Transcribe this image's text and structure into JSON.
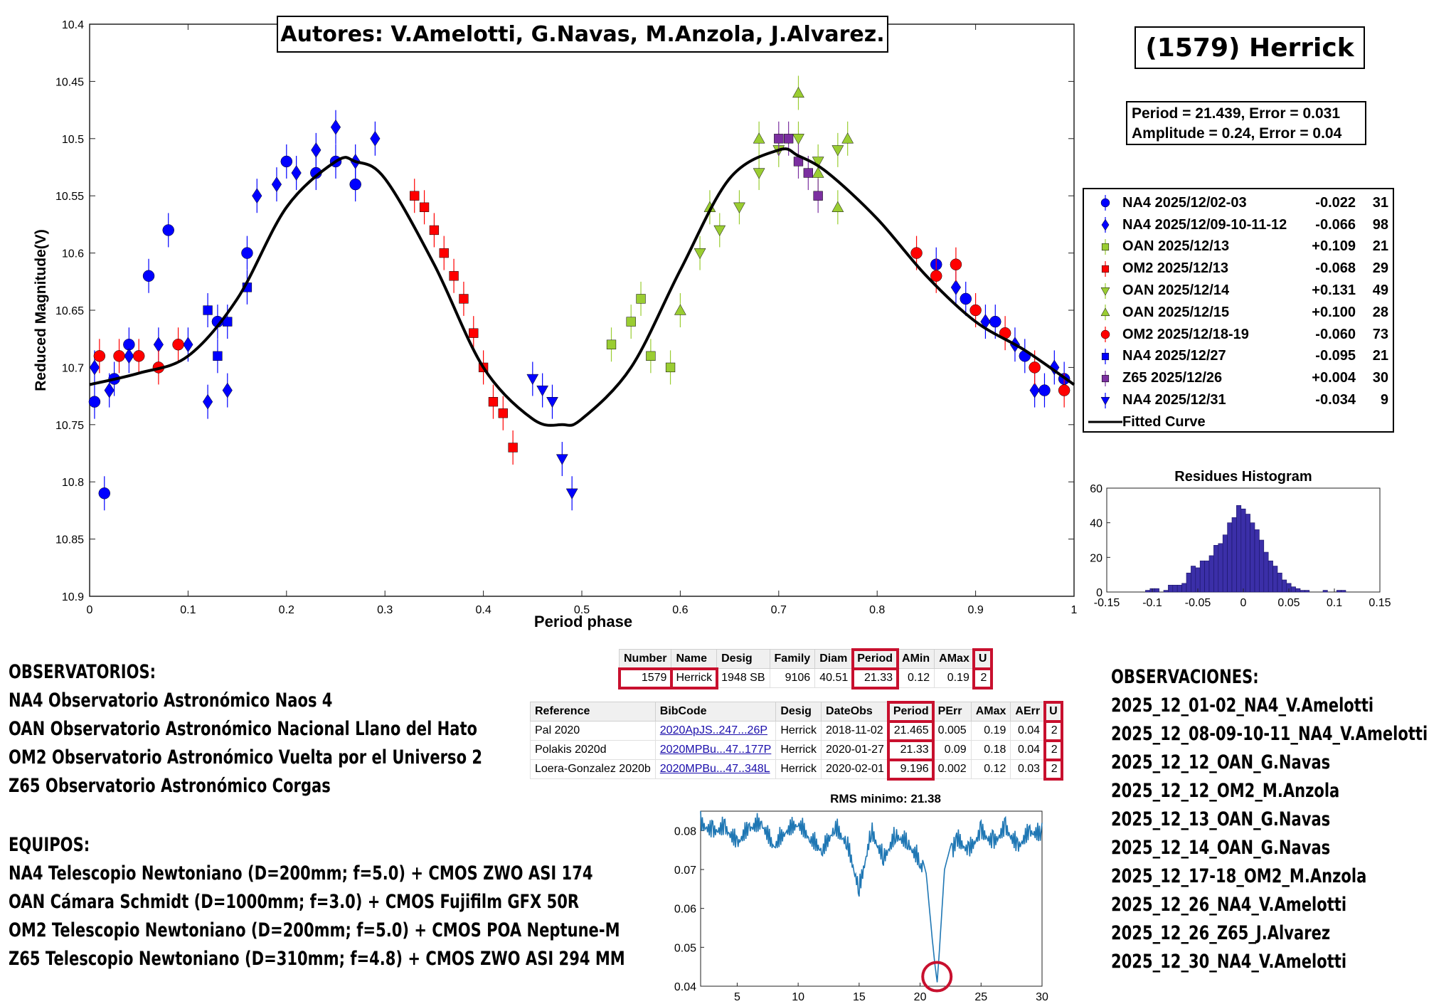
{
  "main_chart": {
    "title": "(1579) Herrick",
    "authors": "Autores: V.Amelotti, G.Navas, M.Anzola, J.Alvarez.",
    "period_line": "Period =  21.439, Error = 0.031",
    "amplitude_line": "Amplitude = 0.24, Error = 0.04",
    "xlabel": "Period phase",
    "ylabel": "Reduced Magnitude(V)",
    "x_ticks": [
      "0",
      "0.1",
      "0.2",
      "0.3",
      "0.4",
      "0.5",
      "0.6",
      "0.7",
      "0.8",
      "0.9",
      "1"
    ],
    "y_ticks": [
      "10.4",
      "10.45",
      "10.5",
      "10.55",
      "10.6",
      "10.65",
      "10.7",
      "10.75",
      "10.8",
      "10.85",
      "10.9"
    ],
    "legend": [
      {
        "name": "NA4 2025/12/02-03",
        "offset": "-0.022",
        "n": "31",
        "color": "#0000ff",
        "marker": "circle"
      },
      {
        "name": "NA4 2025/12/09-10-11-12",
        "offset": "-0.066",
        "n": "98",
        "color": "#0000ff",
        "marker": "diamond"
      },
      {
        "name": "OAN 2025/12/13",
        "offset": "+0.109",
        "n": "21",
        "color": "#9acd32",
        "marker": "square"
      },
      {
        "name": "OM2 2025/12/13",
        "offset": "-0.068",
        "n": "29",
        "color": "#ff0000",
        "marker": "square"
      },
      {
        "name": "OAN 2025/12/14",
        "offset": "+0.131",
        "n": "49",
        "color": "#9acd32",
        "marker": "triangle-down"
      },
      {
        "name": "OAN 2025/12/15",
        "offset": "+0.100",
        "n": "28",
        "color": "#9acd32",
        "marker": "triangle-up"
      },
      {
        "name": "OM2 2025/12/18-19",
        "offset": "-0.060",
        "n": "73",
        "color": "#ff0000",
        "marker": "circle"
      },
      {
        "name": "NA4 2025/12/27",
        "offset": "-0.095",
        "n": "21",
        "color": "#0000ff",
        "marker": "square"
      },
      {
        "name": "Z65 2025/12/26",
        "offset": "+0.004",
        "n": "30",
        "color": "#7b2fa0",
        "marker": "square"
      },
      {
        "name": "NA4 2025/12/31",
        "offset": "-0.034",
        "n": "9",
        "color": "#0000ff",
        "marker": "triangle-down"
      },
      {
        "name": "Fitted Curve",
        "offset": "",
        "n": "",
        "color": "#000000",
        "marker": "line"
      }
    ]
  },
  "histogram": {
    "title": "Residues Histogram",
    "x_ticks": [
      "-0.15",
      "-0.1",
      "-0.05",
      "0",
      "0.05",
      "0.1",
      "0.15"
    ],
    "y_ticks": [
      "0",
      "20",
      "40",
      "60"
    ]
  },
  "periodogram": {
    "title": "RMS minimo: 21.38",
    "x_ticks": [
      "5",
      "10",
      "15",
      "20",
      "25",
      "30"
    ],
    "y_ticks": [
      "0.04",
      "0.05",
      "0.06",
      "0.07",
      "0.08"
    ]
  },
  "lcdb_table": {
    "headers": [
      "Number",
      "Name",
      "Desig",
      "Family",
      "Diam",
      "Period",
      "AMin",
      "AMax",
      "U"
    ],
    "row": [
      "1579",
      "Herrick",
      "1948 SB",
      "9106",
      "40.51",
      "21.33",
      "0.12",
      "0.19",
      "2"
    ]
  },
  "refs_table": {
    "headers": [
      "Reference",
      "BibCode",
      "Desig",
      "DateObs",
      "Period",
      "PErr",
      "AMax",
      "AErr",
      "U"
    ],
    "rows": [
      [
        "Pal 2020",
        "2020ApJS..247...26P",
        "Herrick",
        "2018-11-02",
        "21.465",
        "0.005",
        "0.19",
        "0.04",
        "2"
      ],
      [
        "Polakis 2020d",
        "2020MPBu...47..177P",
        "Herrick",
        "2020-01-27",
        "21.33",
        "0.09",
        "0.18",
        "0.04",
        "2"
      ],
      [
        "Loera-Gonzalez 2020b",
        "2020MPBu...47..348L",
        "Herrick",
        "2020-02-01",
        "9.196",
        "0.002",
        "0.12",
        "0.03",
        "2"
      ]
    ]
  },
  "observatorios": {
    "heading": "OBSERVATORIOS:",
    "lines": [
      "NA4 Observatorio Astronómico Naos 4",
      "OAN Observatorio Astronómico Nacional Llano del Hato",
      "OM2 Observatorio Astronómico Vuelta por el Universo 2",
      "Z65 Observatorio Astronómico Corgas"
    ]
  },
  "equipos": {
    "heading": "EQUIPOS:",
    "lines": [
      "NA4 Telescopio Newtoniano (D=200mm; f=5.0) + CMOS ZWO ASI 174",
      "OAN Cámara Schmidt (D=1000mm; f=3.0) + CMOS Fujifilm GFX 50R",
      "OM2 Telescopio Newtoniano (D=200mm; f=5.0) + CMOS POA Neptune-M",
      "Z65 Telescopio Newtoniano (D=310mm; f=4.8) + CMOS ZWO ASI 294 MM"
    ]
  },
  "observaciones": {
    "heading": "OBSERVACIONES:",
    "lines": [
      "2025_12_01-02_NA4_V.Amelotti",
      "2025_12_08-09-10-11_NA4_V.Amelotti",
      "2025_12_12_OAN_G.Navas",
      "2025_12_12_OM2_M.Anzola",
      "2025_12_13_OAN_G.Navas",
      "2025_12_14_OAN_G.Navas",
      "2025_12_17-18_OM2_M.Anzola",
      "2025_12_26_NA4_V.Amelotti",
      "2025_12_26_Z65_J.Alvarez",
      "2025_12_30_NA4_V.Amelotti"
    ]
  },
  "chart_data": [
    {
      "type": "scatter",
      "title": "(1579) Herrick",
      "xlabel": "Period phase",
      "ylabel": "Reduced Magnitude(V)",
      "xlim": [
        0,
        1
      ],
      "ylim": [
        10.4,
        10.9
      ],
      "y_inverted": true,
      "grid": false,
      "legend_position": "right",
      "period": 21.439,
      "period_error": 0.031,
      "amplitude": 0.24,
      "amplitude_error": 0.04,
      "fitted_curve": {
        "name": "Fitted Curve",
        "x": [
          0,
          0.05,
          0.1,
          0.15,
          0.2,
          0.25,
          0.27,
          0.3,
          0.35,
          0.4,
          0.45,
          0.48,
          0.5,
          0.55,
          0.6,
          0.65,
          0.7,
          0.72,
          0.75,
          0.8,
          0.85,
          0.9,
          0.95,
          1.0
        ],
        "y": [
          10.715,
          10.705,
          10.69,
          10.64,
          10.56,
          10.52,
          10.52,
          10.535,
          10.61,
          10.7,
          10.745,
          10.75,
          10.745,
          10.7,
          10.615,
          10.535,
          10.51,
          10.515,
          10.53,
          10.57,
          10.62,
          10.66,
          10.685,
          10.715
        ]
      },
      "series": [
        {
          "name": "NA4 2025/12/02-03",
          "x": [
            0.005,
            0.015,
            0.025,
            0.04,
            0.06,
            0.08,
            0.13,
            0.16,
            0.2,
            0.23,
            0.25,
            0.27,
            0.86,
            0.89,
            0.92,
            0.95,
            0.97,
            0.99
          ],
          "y": [
            10.73,
            10.81,
            10.71,
            10.68,
            10.62,
            10.58,
            10.66,
            10.6,
            10.52,
            10.53,
            10.52,
            10.54,
            10.61,
            10.64,
            10.66,
            10.69,
            10.72,
            10.71
          ]
        },
        {
          "name": "NA4 2025/12/09-10-11-12",
          "x": [
            0.005,
            0.02,
            0.04,
            0.07,
            0.1,
            0.12,
            0.14,
            0.17,
            0.19,
            0.21,
            0.23,
            0.25,
            0.27,
            0.29,
            0.88,
            0.91,
            0.94,
            0.96,
            0.98
          ],
          "y": [
            10.7,
            10.72,
            10.69,
            10.68,
            10.68,
            10.73,
            10.72,
            10.55,
            10.54,
            10.53,
            10.51,
            10.49,
            10.52,
            10.5,
            10.63,
            10.66,
            10.68,
            10.72,
            10.7
          ]
        },
        {
          "name": "OAN 2025/12/13",
          "x": [
            0.53,
            0.55,
            0.56,
            0.57,
            0.59
          ],
          "y": [
            10.68,
            10.66,
            10.64,
            10.69,
            10.7
          ]
        },
        {
          "name": "OM2 2025/12/13",
          "x": [
            0.33,
            0.34,
            0.35,
            0.36,
            0.37,
            0.38,
            0.39,
            0.4,
            0.41,
            0.42,
            0.43
          ],
          "y": [
            10.55,
            10.56,
            10.58,
            10.6,
            10.62,
            10.64,
            10.67,
            10.7,
            10.73,
            10.74,
            10.77
          ]
        },
        {
          "name": "OAN 2025/12/14",
          "x": [
            0.62,
            0.64,
            0.66,
            0.68,
            0.7,
            0.72,
            0.74,
            0.76
          ],
          "y": [
            10.6,
            10.58,
            10.56,
            10.53,
            10.51,
            10.5,
            10.52,
            10.51
          ]
        },
        {
          "name": "OAN 2025/12/15",
          "x": [
            0.6,
            0.63,
            0.68,
            0.72,
            0.74,
            0.76,
            0.77
          ],
          "y": [
            10.65,
            10.56,
            10.5,
            10.46,
            10.53,
            10.56,
            10.5
          ]
        },
        {
          "name": "OM2 2025/12/18-19",
          "x": [
            0.01,
            0.03,
            0.05,
            0.07,
            0.09,
            0.84,
            0.86,
            0.88,
            0.9,
            0.93,
            0.96,
            0.99
          ],
          "y": [
            10.69,
            10.69,
            10.69,
            10.7,
            10.68,
            10.6,
            10.62,
            10.61,
            10.65,
            10.67,
            10.7,
            10.72
          ]
        },
        {
          "name": "NA4 2025/12/27",
          "x": [
            0.12,
            0.13,
            0.14,
            0.16
          ],
          "y": [
            10.65,
            10.69,
            10.66,
            10.63
          ]
        },
        {
          "name": "Z65 2025/12/26",
          "x": [
            0.7,
            0.71,
            0.72,
            0.73,
            0.74
          ],
          "y": [
            10.5,
            10.5,
            10.52,
            10.53,
            10.55
          ]
        },
        {
          "name": "NA4 2025/12/31",
          "x": [
            0.45,
            0.46,
            0.47,
            0.48,
            0.49
          ],
          "y": [
            10.71,
            10.72,
            10.73,
            10.78,
            10.81
          ]
        }
      ]
    },
    {
      "type": "bar",
      "title": "Residues Histogram",
      "xlim": [
        -0.15,
        0.15
      ],
      "ylim": [
        0,
        60
      ],
      "bin_width": 0.005,
      "x": [
        -0.105,
        -0.1,
        -0.095,
        -0.085,
        -0.08,
        -0.075,
        -0.07,
        -0.065,
        -0.06,
        -0.055,
        -0.05,
        -0.045,
        -0.04,
        -0.035,
        -0.03,
        -0.025,
        -0.02,
        -0.015,
        -0.01,
        -0.005,
        0,
        0.005,
        0.01,
        0.015,
        0.02,
        0.025,
        0.03,
        0.035,
        0.04,
        0.045,
        0.05,
        0.055,
        0.06,
        0.065,
        0.07,
        0.09,
        0.105,
        0.11
      ],
      "values": [
        1,
        2,
        2,
        1,
        4,
        4,
        4,
        5,
        11,
        15,
        14,
        18,
        18,
        21,
        27,
        28,
        33,
        40,
        43,
        50,
        48,
        45,
        40,
        36,
        30,
        23,
        18,
        15,
        11,
        7,
        5,
        3,
        2,
        1,
        1,
        1,
        1,
        1
      ]
    },
    {
      "type": "line",
      "title": "RMS minimo: 21.38",
      "xlim": [
        2,
        30
      ],
      "ylim": [
        0.04,
        0.085
      ],
      "x": [
        2,
        3,
        4,
        5,
        6,
        7,
        8,
        9,
        10,
        11,
        12,
        13,
        14,
        15,
        16,
        17,
        18,
        19,
        20,
        20.5,
        21,
        21.2,
        21.4,
        21.6,
        22,
        22.5,
        23,
        24,
        25,
        26,
        27,
        28,
        29,
        30
      ],
      "y": [
        0.085,
        0.083,
        0.084,
        0.08,
        0.084,
        0.085,
        0.079,
        0.083,
        0.085,
        0.081,
        0.078,
        0.084,
        0.08,
        0.068,
        0.083,
        0.076,
        0.082,
        0.08,
        0.075,
        0.069,
        0.052,
        0.046,
        0.041,
        0.05,
        0.07,
        0.076,
        0.081,
        0.078,
        0.083,
        0.08,
        0.084,
        0.079,
        0.083,
        0.082
      ],
      "minimum_x": 21.38
    }
  ]
}
